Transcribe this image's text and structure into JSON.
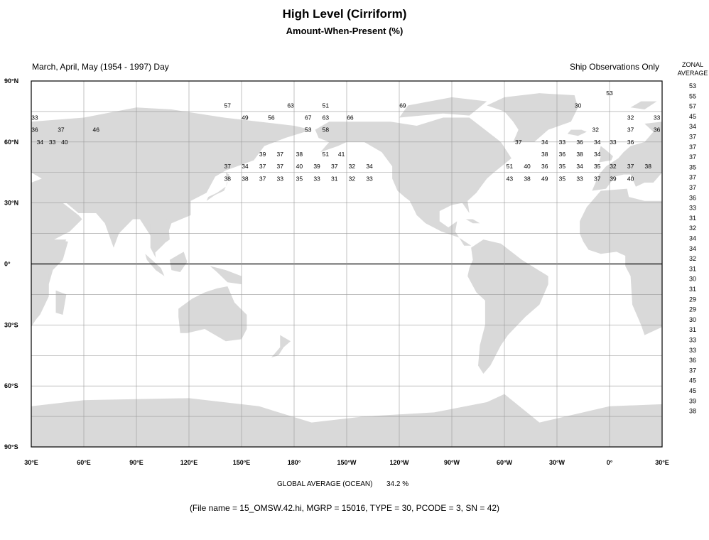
{
  "title": "High Level (Cirriform)",
  "subtitle": "Amount-When-Present (%)",
  "season": "March, April, May (1954 - 1997) Day",
  "source_note": "Ship Observations Only",
  "zonal_header": [
    "ZONAL",
    "AVERAGE"
  ],
  "lat_labels": [
    "90°N",
    "60°N",
    "30°N",
    "0°",
    "30°S",
    "60°S",
    "90°S"
  ],
  "lon_labels": [
    "30°E",
    "60°E",
    "90°E",
    "120°E",
    "150°E",
    "180°",
    "150°W",
    "120°W",
    "90°W",
    "60°W",
    "30°W",
    "0°",
    "30°E"
  ],
  "zonal_average": [
    "53",
    "55",
    "57",
    "45",
    "34",
    "37",
    "37",
    "37",
    "35",
    "37",
    "37",
    "36",
    "33",
    "31",
    "32",
    "34",
    "34",
    "32",
    "31",
    "30",
    "31",
    "29",
    "29",
    "30",
    "31",
    "33",
    "33",
    "36",
    "37",
    "45",
    "45",
    "39",
    "38"
  ],
  "colors": {
    "land": "#d9d9d9",
    "grid": "#9a9a9a",
    "frame": "#000000",
    "equator": "#000000",
    "background": "#ffffff"
  },
  "global_average_label": "GLOBAL AVERAGE (OCEAN)",
  "global_average_value": "34.2 %",
  "file_info": "(File name = 15_OMSW.42.hi, MGRP = 15016, TYPE = 30, PCODE = 3, SN = 42)",
  "grid_values": [
    {
      "lat": 84,
      "lon": 0,
      "v": "53"
    },
    {
      "lat": 78,
      "lon": 142,
      "v": "57"
    },
    {
      "lat": 78,
      "lon": 178,
      "v": "63"
    },
    {
      "lat": 78,
      "lon": -162,
      "v": "51"
    },
    {
      "lat": 78,
      "lon": -118,
      "v": "69"
    },
    {
      "lat": 78,
      "lon": -18,
      "v": "30"
    },
    {
      "lat": 72,
      "lon": 32,
      "v": "33"
    },
    {
      "lat": 72,
      "lon": 152,
      "v": "49"
    },
    {
      "lat": 72,
      "lon": 167,
      "v": "56"
    },
    {
      "lat": 72,
      "lon": -172,
      "v": "67"
    },
    {
      "lat": 72,
      "lon": -162,
      "v": "63"
    },
    {
      "lat": 72,
      "lon": -148,
      "v": "66"
    },
    {
      "lat": 72,
      "lon": 12,
      "v": "32"
    },
    {
      "lat": 72,
      "lon": 27,
      "v": "33"
    },
    {
      "lat": 66,
      "lon": 32,
      "v": "36"
    },
    {
      "lat": 66,
      "lon": 47,
      "v": "37"
    },
    {
      "lat": 66,
      "lon": 67,
      "v": "46"
    },
    {
      "lat": 66,
      "lon": -172,
      "v": "53"
    },
    {
      "lat": 66,
      "lon": -162,
      "v": "58"
    },
    {
      "lat": 66,
      "lon": -8,
      "v": "32"
    },
    {
      "lat": 66,
      "lon": 12,
      "v": "37"
    },
    {
      "lat": 66,
      "lon": 27,
      "v": "36"
    },
    {
      "lat": 60,
      "lon": 35,
      "v": "34"
    },
    {
      "lat": 60,
      "lon": 42,
      "v": "33"
    },
    {
      "lat": 60,
      "lon": 49,
      "v": "40"
    },
    {
      "lat": 60,
      "lon": -52,
      "v": "37"
    },
    {
      "lat": 60,
      "lon": -37,
      "v": "34"
    },
    {
      "lat": 60,
      "lon": -27,
      "v": "33"
    },
    {
      "lat": 60,
      "lon": -17,
      "v": "36"
    },
    {
      "lat": 60,
      "lon": -7,
      "v": "34"
    },
    {
      "lat": 60,
      "lon": 2,
      "v": "33"
    },
    {
      "lat": 60,
      "lon": 12,
      "v": "36"
    },
    {
      "lat": 54,
      "lon": 162,
      "v": "39"
    },
    {
      "lat": 54,
      "lon": 172,
      "v": "37"
    },
    {
      "lat": 54,
      "lon": -177,
      "v": "38"
    },
    {
      "lat": 54,
      "lon": -162,
      "v": "51"
    },
    {
      "lat": 54,
      "lon": -153,
      "v": "41"
    },
    {
      "lat": 54,
      "lon": -37,
      "v": "38"
    },
    {
      "lat": 54,
      "lon": -27,
      "v": "36"
    },
    {
      "lat": 54,
      "lon": -17,
      "v": "38"
    },
    {
      "lat": 54,
      "lon": -7,
      "v": "34"
    },
    {
      "lat": 48,
      "lon": 142,
      "v": "37"
    },
    {
      "lat": 48,
      "lon": 152,
      "v": "34"
    },
    {
      "lat": 48,
      "lon": 162,
      "v": "37"
    },
    {
      "lat": 48,
      "lon": 172,
      "v": "37"
    },
    {
      "lat": 48,
      "lon": -177,
      "v": "40"
    },
    {
      "lat": 48,
      "lon": -167,
      "v": "39"
    },
    {
      "lat": 48,
      "lon": -157,
      "v": "37"
    },
    {
      "lat": 48,
      "lon": -147,
      "v": "32"
    },
    {
      "lat": 48,
      "lon": -137,
      "v": "34"
    },
    {
      "lat": 48,
      "lon": -57,
      "v": "51"
    },
    {
      "lat": 48,
      "lon": -47,
      "v": "40"
    },
    {
      "lat": 48,
      "lon": -37,
      "v": "36"
    },
    {
      "lat": 48,
      "lon": -27,
      "v": "35"
    },
    {
      "lat": 48,
      "lon": -17,
      "v": "34"
    },
    {
      "lat": 48,
      "lon": -7,
      "v": "35"
    },
    {
      "lat": 48,
      "lon": 2,
      "v": "32"
    },
    {
      "lat": 48,
      "lon": 12,
      "v": "37"
    },
    {
      "lat": 48,
      "lon": 22,
      "v": "38"
    },
    {
      "lat": 42,
      "lon": 142,
      "v": "38"
    },
    {
      "lat": 42,
      "lon": 152,
      "v": "38"
    },
    {
      "lat": 42,
      "lon": 162,
      "v": "37"
    },
    {
      "lat": 42,
      "lon": 172,
      "v": "33"
    },
    {
      "lat": 42,
      "lon": -177,
      "v": "35"
    },
    {
      "lat": 42,
      "lon": -167,
      "v": "33"
    },
    {
      "lat": 42,
      "lon": -157,
      "v": "31"
    },
    {
      "lat": 42,
      "lon": -147,
      "v": "32"
    },
    {
      "lat": 42,
      "lon": -137,
      "v": "33"
    },
    {
      "lat": 42,
      "lon": -57,
      "v": "43"
    },
    {
      "lat": 42,
      "lon": -47,
      "v": "38"
    },
    {
      "lat": 42,
      "lon": -37,
      "v": "49"
    },
    {
      "lat": 42,
      "lon": -27,
      "v": "35"
    },
    {
      "lat": 42,
      "lon": -17,
      "v": "33"
    },
    {
      "lat": 42,
      "lon": -7,
      "v": "37"
    },
    {
      "lat": 42,
      "lon": 2,
      "v": "39"
    },
    {
      "lat": 42,
      "lon": 12,
      "v": "40"
    }
  ]
}
